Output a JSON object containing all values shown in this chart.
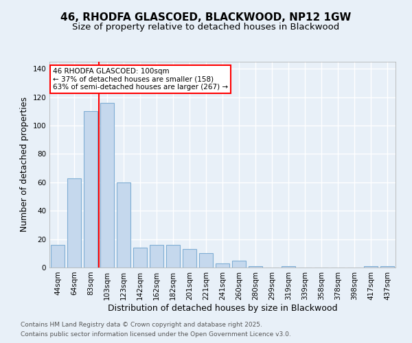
{
  "title_line1": "46, RHODFA GLASCOED, BLACKWOOD, NP12 1GW",
  "title_line2": "Size of property relative to detached houses in Blackwood",
  "xlabel": "Distribution of detached houses by size in Blackwood",
  "ylabel": "Number of detached properties",
  "categories": [
    "44sqm",
    "64sqm",
    "83sqm",
    "103sqm",
    "123sqm",
    "142sqm",
    "162sqm",
    "182sqm",
    "201sqm",
    "221sqm",
    "241sqm",
    "260sqm",
    "280sqm",
    "299sqm",
    "319sqm",
    "339sqm",
    "358sqm",
    "378sqm",
    "398sqm",
    "417sqm",
    "437sqm"
  ],
  "values": [
    16,
    63,
    110,
    116,
    60,
    14,
    16,
    16,
    13,
    10,
    3,
    5,
    1,
    0,
    1,
    0,
    0,
    0,
    0,
    1,
    1
  ],
  "bar_color": "#c5d8ed",
  "bar_edge_color": "#7faed4",
  "reference_line_x": 2.5,
  "reference_line_color": "red",
  "annotation_text": "46 RHODFA GLASCOED: 100sqm\n← 37% of detached houses are smaller (158)\n63% of semi-detached houses are larger (267) →",
  "annotation_box_color": "white",
  "annotation_box_edge_color": "red",
  "ylim": [
    0,
    145
  ],
  "yticks": [
    0,
    20,
    40,
    60,
    80,
    100,
    120,
    140
  ],
  "background_color": "#e8f0f8",
  "plot_background_color": "#e8f0f8",
  "grid_color": "white",
  "footer_line1": "Contains HM Land Registry data © Crown copyright and database right 2025.",
  "footer_line2": "Contains public sector information licensed under the Open Government Licence v3.0.",
  "title_fontsize": 11,
  "subtitle_fontsize": 9.5,
  "axis_label_fontsize": 9,
  "tick_fontsize": 7.5,
  "annotation_fontsize": 7.5,
  "footer_fontsize": 6.5
}
